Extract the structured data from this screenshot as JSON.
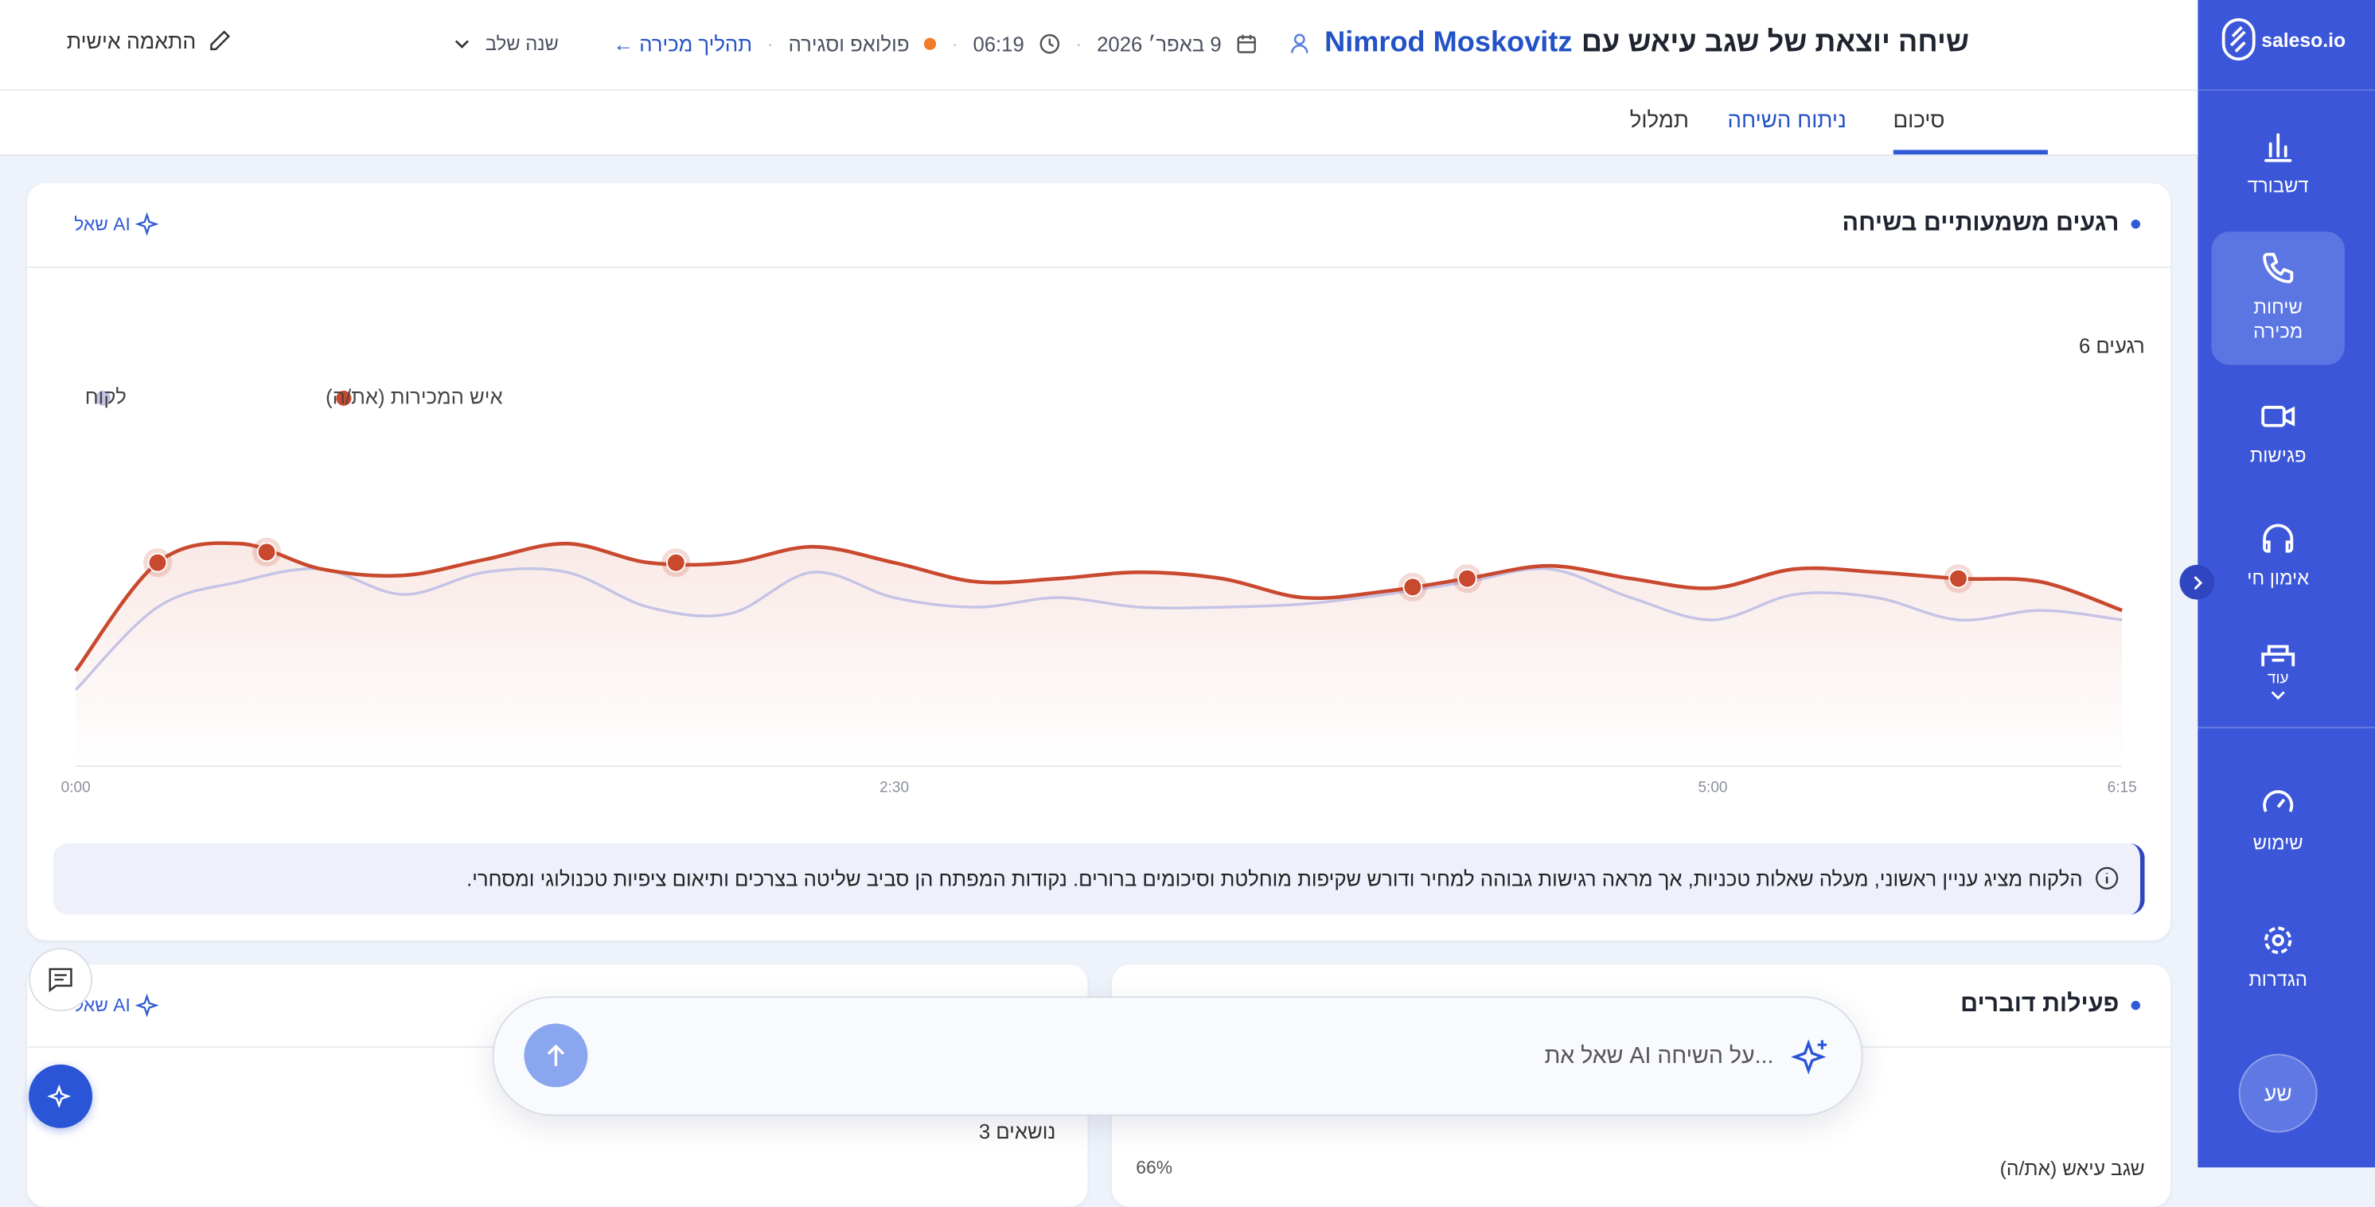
{
  "sidebar": {
    "logo": "saleso.io",
    "items": [
      {
        "label": "דשבורד"
      },
      {
        "label": "שיחות מכירה"
      },
      {
        "label": "פגישות"
      },
      {
        "label": "אימון חי"
      },
      {
        "label": "עוד"
      },
      {
        "label": "שימוש"
      },
      {
        "label": "הגדרות"
      }
    ],
    "avatar": "שע"
  },
  "header": {
    "title": "שיחה יוצאת של שגב עיאש עם",
    "contact": "Nimrod Moskovitz",
    "date": "9 באפר׳ 2026",
    "duration": "06:19",
    "stage": "פולואפ וסגירה",
    "process_link": "תהליך מכירה ←",
    "change_stage": "שנה שלב",
    "personalize": "התאמה אישית"
  },
  "tabs": [
    "סיכום",
    "ניתוח השיחה",
    "תמלול"
  ],
  "moments_card": {
    "title": "רגעים משמעותיים בשיחה",
    "ask_ai": "שאל AI",
    "count": "6 רגעים",
    "insight": "הלקוח מציג עניין ראשוני, מעלה שאלות טכניות, אך מראה רגישות גבוהה למחיר ודורש שקיפות מוחלטת וסיכומים ברורים. נקודות המפתח הן סביב שליטה בצרכים ותיאום ציפיות טכנולוגי ומסחרי."
  },
  "speakers_card": {
    "title": "פעילות דוברים",
    "speaker": "שגב עיאש (את/ה)",
    "share": "66%"
  },
  "topics_card": {
    "ask_ai": "שאל AI",
    "count": "3 נושאים"
  },
  "chat_input": {
    "placeholder": "שאל את AI על השיחה..."
  },
  "chart_data": {
    "type": "line",
    "x": [
      0,
      15,
      30,
      45,
      60,
      75,
      90,
      105,
      120,
      135,
      150,
      165,
      180,
      195,
      210,
      225,
      240,
      255,
      270,
      285,
      300,
      315,
      330,
      345,
      360,
      375
    ],
    "xlim": [
      0,
      375
    ],
    "xticks": [
      {
        "value": 0,
        "label": "0:00"
      },
      {
        "value": 150,
        "label": "2:30"
      },
      {
        "value": 300,
        "label": "5:00"
      },
      {
        "value": 375,
        "label": "6:15"
      }
    ],
    "ylim": [
      0,
      100
    ],
    "series": [
      {
        "name": "איש המכירות (את/ה)",
        "color": "#c9492f",
        "values": [
          30,
          64,
          70,
          62,
          60,
          65,
          70,
          64,
          64,
          69,
          64,
          58,
          59,
          61,
          59,
          53,
          55,
          59,
          63,
          59,
          56,
          62,
          61,
          59,
          58,
          49
        ]
      },
      {
        "name": "לקוח",
        "color": "#c5c3e6",
        "values": [
          24,
          50,
          58,
          62,
          54,
          61,
          61,
          50,
          48,
          61,
          53,
          50,
          53,
          50,
          50,
          51,
          54,
          58,
          62,
          53,
          46,
          54,
          53,
          46,
          49,
          46
        ]
      }
    ],
    "moments": [
      15,
      35,
      110,
      245,
      255,
      345
    ]
  }
}
